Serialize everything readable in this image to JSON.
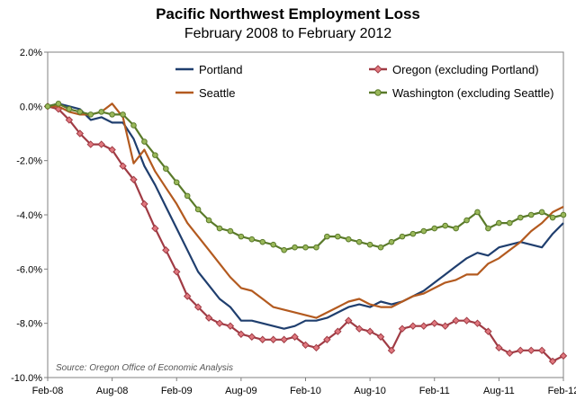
{
  "chart_data": {
    "type": "line",
    "title": "Pacific Northwest Employment Loss",
    "subtitle": "February 2008 to February 2012",
    "source": "Source: Oregon Office of Economic Analysis",
    "xlabel": "",
    "ylabel": "",
    "ylim": [
      -10,
      2
    ],
    "yticks": [
      "2.0%",
      "0.0%",
      "-2.0%",
      "-4.0%",
      "-6.0%",
      "-8.0%",
      "-10.0%"
    ],
    "ytick_values": [
      2,
      0,
      -2,
      -4,
      -6,
      -8,
      -10
    ],
    "xtick_labels": [
      "Feb-08",
      "Aug-08",
      "Feb-09",
      "Aug-09",
      "Feb-10",
      "Aug-10",
      "Feb-11",
      "Aug-11",
      "Feb-12"
    ],
    "xtick_index": [
      0,
      6,
      12,
      18,
      24,
      30,
      36,
      42,
      48
    ],
    "x_months": 49,
    "grid": false,
    "legend_position": "top-center",
    "series": [
      {
        "name": "Portland",
        "color": "#1f3e6e",
        "marker": "none",
        "values": [
          0,
          0.1,
          0,
          -0.1,
          -0.5,
          -0.4,
          -0.6,
          -0.6,
          -1.2,
          -2.2,
          -2.9,
          -3.7,
          -4.5,
          -5.3,
          -6.1,
          -6.6,
          -7.1,
          -7.4,
          -7.9,
          -7.9,
          -8.0,
          -8.1,
          -8.2,
          -8.1,
          -7.9,
          -7.9,
          -7.8,
          -7.6,
          -7.4,
          -7.3,
          -7.4,
          -7.2,
          -7.3,
          -7.2,
          -7.0,
          -6.8,
          -6.5,
          -6.2,
          -5.9,
          -5.6,
          -5.4,
          -5.5,
          -5.2,
          -5.1,
          -5.0,
          -5.1,
          -5.2,
          -4.7,
          -4.3
        ]
      },
      {
        "name": "Oregon (excluding Portland)",
        "color": "#a03b44",
        "marker": "diamond",
        "marker_fill": "#e0787f",
        "values": [
          0,
          -0.1,
          -0.5,
          -1.0,
          -1.4,
          -1.4,
          -1.6,
          -2.2,
          -2.7,
          -3.6,
          -4.5,
          -5.3,
          -6.1,
          -7.0,
          -7.4,
          -7.8,
          -8.0,
          -8.1,
          -8.4,
          -8.5,
          -8.6,
          -8.6,
          -8.6,
          -8.5,
          -8.8,
          -8.9,
          -8.6,
          -8.3,
          -7.9,
          -8.2,
          -8.3,
          -8.5,
          -9.0,
          -8.2,
          -8.1,
          -8.1,
          -8.0,
          -8.1,
          -7.9,
          -7.9,
          -8.0,
          -8.3,
          -8.9,
          -9.1,
          -9.0,
          -9.0,
          -9.0,
          -9.4,
          -9.2
        ]
      },
      {
        "name": "Seattle",
        "color": "#b35a1f",
        "marker": "none",
        "values": [
          0,
          0,
          -0.2,
          -0.3,
          -0.3,
          -0.2,
          0.1,
          -0.4,
          -2.1,
          -1.6,
          -2.4,
          -3.0,
          -3.6,
          -4.3,
          -4.8,
          -5.3,
          -5.8,
          -6.3,
          -6.7,
          -6.8,
          -7.1,
          -7.4,
          -7.5,
          -7.6,
          -7.7,
          -7.8,
          -7.6,
          -7.4,
          -7.2,
          -7.1,
          -7.3,
          -7.4,
          -7.4,
          -7.2,
          -7.0,
          -6.9,
          -6.7,
          -6.5,
          -6.4,
          -6.2,
          -6.2,
          -5.8,
          -5.6,
          -5.3,
          -5.0,
          -4.6,
          -4.3,
          -3.9,
          -3.7
        ]
      },
      {
        "name": "Washington (excluding Seattle)",
        "color": "#5a7a2a",
        "marker": "circle",
        "marker_fill": "#9ab85a",
        "values": [
          0,
          0.1,
          -0.1,
          -0.2,
          -0.3,
          -0.2,
          -0.3,
          -0.3,
          -0.7,
          -1.3,
          -1.8,
          -2.3,
          -2.8,
          -3.3,
          -3.8,
          -4.2,
          -4.5,
          -4.6,
          -4.8,
          -4.9,
          -5.0,
          -5.1,
          -5.3,
          -5.2,
          -5.2,
          -5.2,
          -4.8,
          -4.8,
          -4.9,
          -5.0,
          -5.1,
          -5.2,
          -5.0,
          -4.8,
          -4.7,
          -4.6,
          -4.5,
          -4.4,
          -4.5,
          -4.2,
          -3.9,
          -4.5,
          -4.3,
          -4.3,
          -4.1,
          -4.0,
          -3.9,
          -4.1,
          -4.0
        ]
      }
    ]
  }
}
